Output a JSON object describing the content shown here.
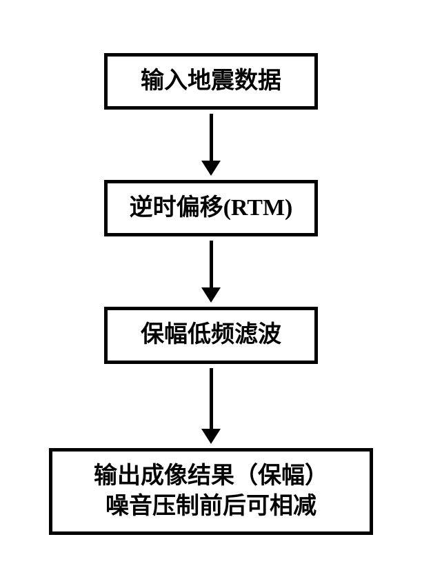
{
  "flowchart": {
    "type": "flowchart",
    "direction": "vertical",
    "background_color": "#ffffff",
    "border_color": "#000000",
    "border_width": 5,
    "text_color": "#000000",
    "font_size": 34,
    "font_weight": "bold",
    "arrow_color": "#000000",
    "arrow_line_width": 5,
    "arrow_head_width": 28,
    "arrow_head_height": 22,
    "nodes": [
      {
        "id": "node1",
        "label": "输入地震数据",
        "box_min_width": 310,
        "lines": [
          "输入地震数据"
        ]
      },
      {
        "id": "node2",
        "label": "逆时偏移(RTM)",
        "box_min_width": 310,
        "lines": [
          "逆时偏移(RTM)"
        ]
      },
      {
        "id": "node3",
        "label": "保幅低频滤波",
        "box_min_width": 310,
        "lines": [
          "保幅低频滤波"
        ]
      },
      {
        "id": "node4",
        "label_line1": "输出成像结果（保幅）",
        "label_line2": "噪音压制前后可相减",
        "box_min_width": 470,
        "lines": [
          "输出成像结果（保幅）",
          "噪音压制前后可相减"
        ]
      }
    ],
    "edges": [
      {
        "from": "node1",
        "to": "node2",
        "line_height": 70
      },
      {
        "from": "node2",
        "to": "node3",
        "line_height": 70
      },
      {
        "from": "node3",
        "to": "node4",
        "line_height": 90
      }
    ]
  }
}
